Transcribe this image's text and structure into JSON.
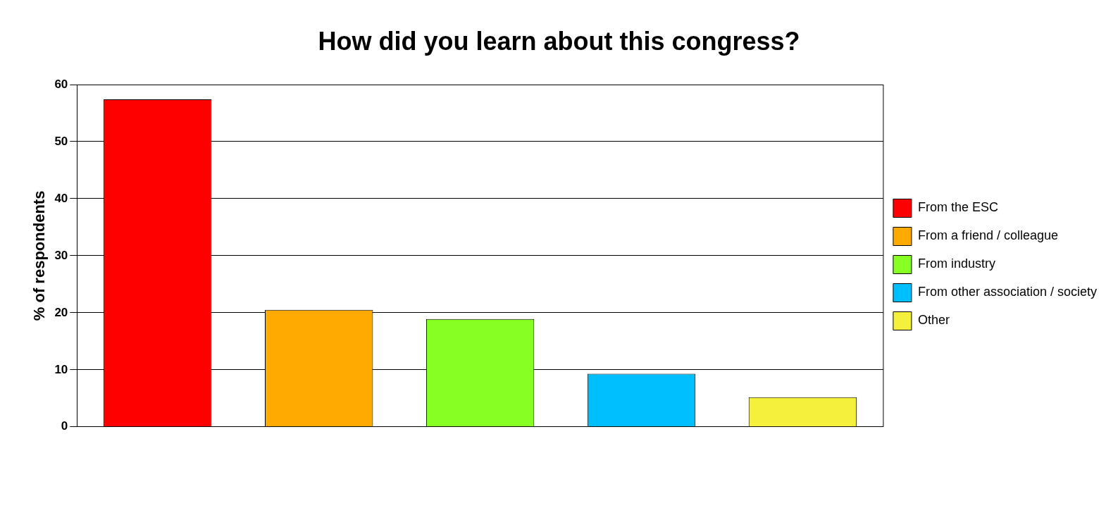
{
  "chart_data": {
    "type": "bar",
    "title": "How did you learn about this congress?",
    "ylabel": "% of respondents",
    "categories": [
      null,
      null,
      null,
      null,
      null
    ],
    "series": [
      {
        "name": "From the ESC",
        "color": "#ff0000",
        "values": [
          57.4,
          null,
          null,
          null,
          null
        ]
      },
      {
        "name": "From a friend / colleague",
        "color": "#ffaa00",
        "values": [
          null,
          20.5,
          null,
          null,
          null
        ]
      },
      {
        "name": "From industry",
        "color": "#88ff22",
        "values": [
          null,
          null,
          18.9,
          null,
          null
        ]
      },
      {
        "name": "From other association / society",
        "color": "#00bfff",
        "values": [
          null,
          null,
          null,
          9.3,
          null
        ]
      },
      {
        "name": "Other",
        "color": "#f5f03c",
        "values": [
          null,
          null,
          null,
          null,
          5.2
        ]
      }
    ],
    "ylim": [
      0,
      60
    ],
    "yticks": [
      0,
      10,
      20,
      30,
      40,
      50,
      60
    ],
    "grid": "y",
    "legend": "right"
  }
}
